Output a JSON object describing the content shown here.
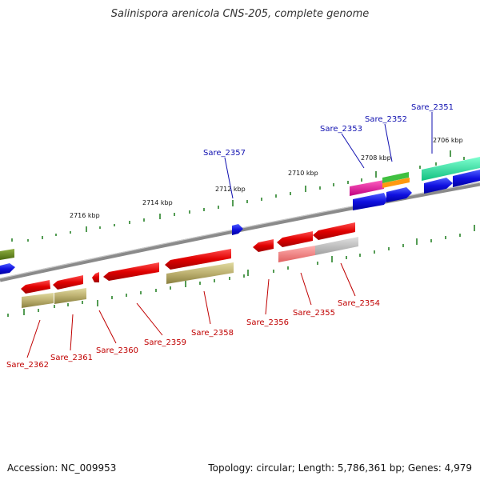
{
  "title": "Salinispora arenicola CNS-205, complete genome",
  "footer": {
    "accession": "Accession: NC_009953",
    "topology": "Topology: circular; Length: 5,786,361 bp; Genes: 4,979"
  },
  "ticks": [
    "2706 kbp",
    "2708 kbp",
    "2710 kbp",
    "2712 kbp",
    "2714 kbp",
    "2716 kbp"
  ],
  "genes_top": [
    "Sare_2351",
    "Sare_2352",
    "Sare_2353",
    "Sare_2357"
  ],
  "genes_bottom": [
    "Sare_2354",
    "Sare_2355",
    "Sare_2356",
    "Sare_2358",
    "Sare_2359",
    "Sare_2360",
    "Sare_2361",
    "Sare_2362"
  ],
  "colors": {
    "forward_cds": "#1515e0",
    "reverse_cds": "#e01010",
    "tick": "#1a7a1a",
    "backbone": "#808080",
    "rna": "#b8b070",
    "label_top": "#1010b0",
    "label_bottom": "#c00000"
  }
}
